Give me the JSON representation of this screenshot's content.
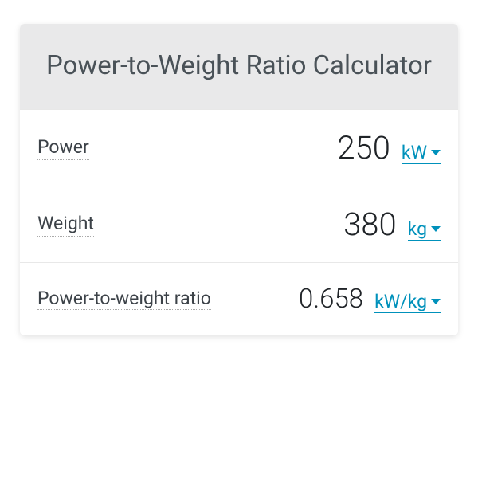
{
  "header": {
    "title": "Power-to-Weight Ratio Calculator"
  },
  "rows": [
    {
      "label": "Power",
      "value": "250",
      "unit": "kW",
      "value_class": "value"
    },
    {
      "label": "Weight",
      "value": "380",
      "unit": "kg",
      "value_class": "value"
    },
    {
      "label": "Power-to-weight ratio",
      "value": "0.658",
      "unit": "kW/kg",
      "value_class": "value-small"
    }
  ],
  "colors": {
    "header_bg": "#e9e9ea",
    "header_text": "#4a5258",
    "label_text": "#3c4248",
    "value_text": "#202428",
    "unit_text": "#0091bb",
    "border": "#e8e8e8"
  }
}
